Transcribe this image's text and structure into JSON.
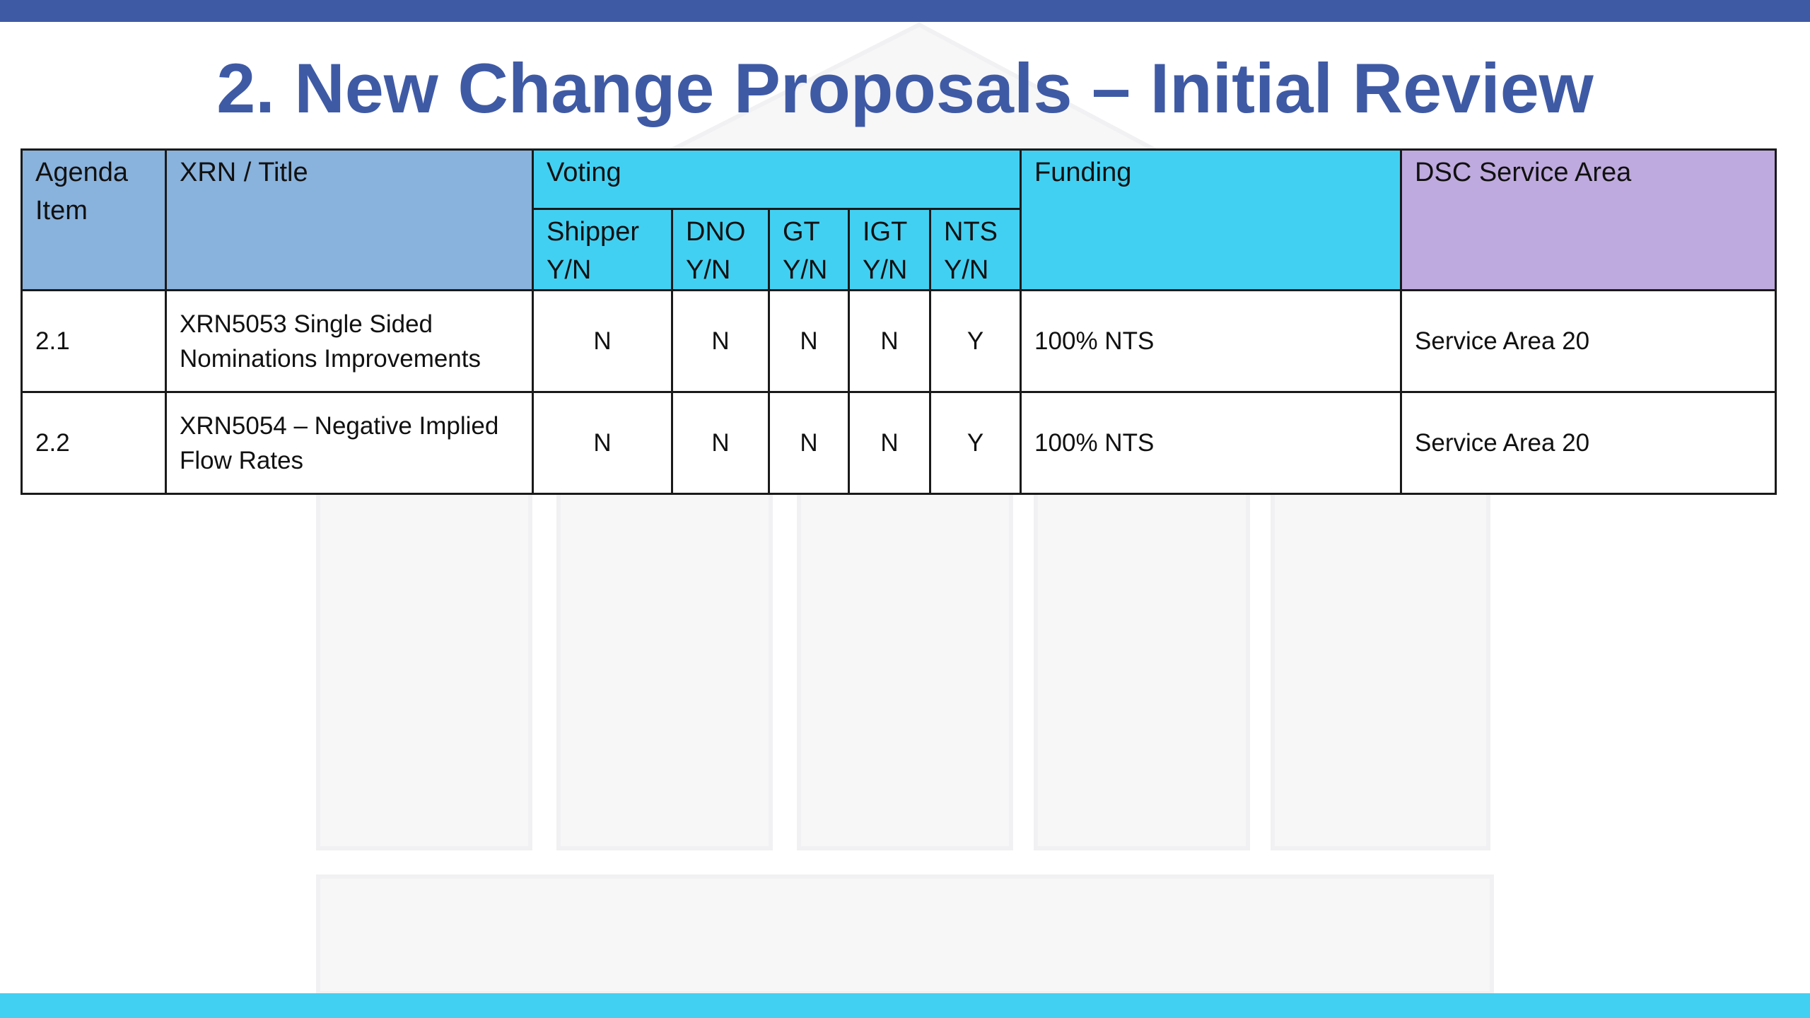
{
  "slide": {
    "title": "2. New Change Proposals – Initial Review",
    "colors": {
      "top_bar": "#3f5aa5",
      "bottom_bar": "#42d0f2",
      "title": "#3f5aa5",
      "header_blue": "#89b2dc",
      "header_cyan": "#42d0f2",
      "header_purple": "#bfaadf"
    }
  },
  "table": {
    "headers": {
      "agenda_item": "Agenda Item",
      "xrn_title": "XRN / Title",
      "voting": "Voting",
      "funding": "Funding",
      "dsc_service_area": "DSC Service Area",
      "voting_subheaders": [
        {
          "party": "Shipper",
          "yn": "Y/N"
        },
        {
          "party": "DNO",
          "yn": "Y/N"
        },
        {
          "party": "GT",
          "yn": "Y/N"
        },
        {
          "party": "IGT",
          "yn": "Y/N"
        },
        {
          "party": "NTS",
          "yn": "Y/N"
        }
      ]
    },
    "rows": [
      {
        "agenda_item": "2.1",
        "title_line1": "XRN5053 Single Sided",
        "title_line2": "Nominations Improvements",
        "votes": [
          "N",
          "N",
          "N",
          "N",
          "Y"
        ],
        "funding": "100% NTS",
        "dsc_service_area": "Service Area 20"
      },
      {
        "agenda_item": "2.2",
        "title_line1": "XRN5054 – Negative Implied",
        "title_line2": "Flow Rates",
        "votes": [
          "N",
          "N",
          "N",
          "N",
          "Y"
        ],
        "funding": "100% NTS",
        "dsc_service_area": "Service Area 20"
      }
    ]
  }
}
